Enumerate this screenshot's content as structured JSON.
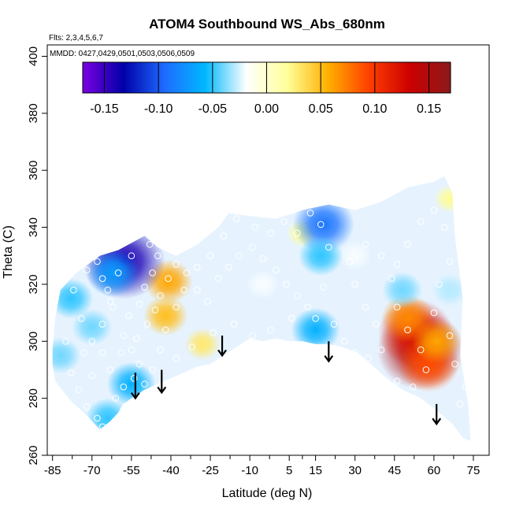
{
  "chart_data": {
    "type": "heatmap",
    "title": "ATOM4 Southbound WS_Abs_680nm",
    "annotations": [
      "Flts: 2,3,4,5,6,7",
      "MMDD: 0427,0429,0501,0503,0506,0509"
    ],
    "xlabel": "Latitude (deg N)",
    "ylabel": "Theta (C)",
    "xlim": [
      -87,
      81
    ],
    "ylim": [
      260,
      404
    ],
    "x_ticks": [
      -85,
      -70,
      -55,
      -40,
      -25,
      -10,
      5,
      15,
      30,
      45,
      60,
      75
    ],
    "y_ticks": [
      260,
      280,
      300,
      320,
      340,
      360,
      380,
      400
    ],
    "colorbar": {
      "range": [
        -0.17,
        0.17
      ],
      "ticks": [
        -0.15,
        -0.1,
        -0.05,
        0.0,
        0.05,
        0.1,
        0.15
      ],
      "tick_labels": [
        "-0.15",
        "-0.10",
        "-0.05",
        "0.00",
        "0.05",
        "0.10",
        "0.15"
      ],
      "colors": [
        "#7b00e0",
        "#0000a8",
        "#1e6bff",
        "#00b8ff",
        "#ffffff",
        "#ffff9a",
        "#ffb000",
        "#ff4000",
        "#cc0000",
        "#8b1a1a"
      ]
    },
    "field_outline": [
      [
        -85,
        292
      ],
      [
        -85,
        297
      ],
      [
        -84,
        308
      ],
      [
        -82,
        318
      ],
      [
        -76,
        324
      ],
      [
        -67,
        330
      ],
      [
        -60,
        332
      ],
      [
        -54,
        335
      ],
      [
        -50,
        337
      ],
      [
        -45,
        333
      ],
      [
        -38,
        330
      ],
      [
        -30,
        334
      ],
      [
        -22,
        340
      ],
      [
        -18,
        345
      ],
      [
        -10,
        344
      ],
      [
        0,
        343
      ],
      [
        10,
        346
      ],
      [
        20,
        348
      ],
      [
        30,
        346
      ],
      [
        40,
        349
      ],
      [
        50,
        354
      ],
      [
        60,
        356
      ],
      [
        64,
        358
      ],
      [
        67,
        352
      ],
      [
        68,
        337
      ],
      [
        71,
        315
      ],
      [
        70,
        295
      ],
      [
        73,
        278
      ],
      [
        74,
        265
      ],
      [
        71,
        266
      ],
      [
        67,
        271
      ],
      [
        62,
        275
      ],
      [
        55,
        280
      ],
      [
        48,
        283
      ],
      [
        42,
        287
      ],
      [
        36,
        292
      ],
      [
        31,
        296
      ],
      [
        25,
        298
      ],
      [
        20,
        299
      ],
      [
        15,
        299
      ],
      [
        10,
        300
      ],
      [
        5,
        300
      ],
      [
        0,
        301
      ],
      [
        -5,
        300
      ],
      [
        -10,
        301
      ],
      [
        -15,
        298
      ],
      [
        -20,
        295
      ],
      [
        -25,
        292
      ],
      [
        -30,
        291
      ],
      [
        -35,
        289
      ],
      [
        -40,
        287
      ],
      [
        -45,
        285
      ],
      [
        -50,
        283
      ],
      [
        -55,
        280
      ],
      [
        -58,
        278
      ],
      [
        -60,
        275
      ],
      [
        -63,
        272
      ],
      [
        -67,
        269
      ],
      [
        -72,
        274
      ],
      [
        -78,
        279
      ],
      [
        -84,
        286
      ]
    ],
    "anomalies": [
      {
        "x": 55,
        "y": 297,
        "value": 0.15
      },
      {
        "x": 53,
        "y": 303,
        "value": 0.12
      },
      {
        "x": 58,
        "y": 292,
        "value": 0.09
      },
      {
        "x": 50,
        "y": 308,
        "value": 0.07
      },
      {
        "x": 61,
        "y": 300,
        "value": 0.06
      },
      {
        "x": -41,
        "y": 321,
        "value": 0.06
      },
      {
        "x": -42,
        "y": 309,
        "value": 0.05
      },
      {
        "x": -28,
        "y": 299,
        "value": 0.03
      },
      {
        "x": 10,
        "y": 338,
        "value": 0.02
      },
      {
        "x": 66,
        "y": 350,
        "value": 0.02
      },
      {
        "x": -58,
        "y": 328,
        "value": -0.14
      },
      {
        "x": -62,
        "y": 324,
        "value": -0.07
      },
      {
        "x": -78,
        "y": 315,
        "value": -0.05
      },
      {
        "x": -70,
        "y": 305,
        "value": -0.04
      },
      {
        "x": -82,
        "y": 295,
        "value": -0.04
      },
      {
        "x": -55,
        "y": 285,
        "value": -0.06
      },
      {
        "x": -64,
        "y": 273,
        "value": -0.05
      },
      {
        "x": 18,
        "y": 341,
        "value": -0.09
      },
      {
        "x": 17,
        "y": 330,
        "value": -0.05
      },
      {
        "x": 15,
        "y": 304,
        "value": -0.06
      },
      {
        "x": 48,
        "y": 318,
        "value": -0.04
      },
      {
        "x": 66,
        "y": 318,
        "value": -0.03
      },
      {
        "x": -5,
        "y": 320,
        "value": -0.02
      },
      {
        "x": 30,
        "y": 330,
        "value": -0.02
      }
    ],
    "sample_points": [
      [
        -77,
        318
      ],
      [
        -72,
        325
      ],
      [
        -68,
        328
      ],
      [
        -66,
        322
      ],
      [
        -64,
        318
      ],
      [
        -62,
        312
      ],
      [
        -66,
        306
      ],
      [
        -70,
        300
      ],
      [
        -73,
        296
      ],
      [
        -78,
        289
      ],
      [
        -75,
        283
      ],
      [
        -72,
        277
      ],
      [
        -68,
        273
      ],
      [
        -66,
        270
      ],
      [
        -61,
        280
      ],
      [
        -58,
        284
      ],
      [
        -54,
        287
      ],
      [
        -52,
        292
      ],
      [
        -55,
        297
      ],
      [
        -58,
        302
      ],
      [
        -56,
        309
      ],
      [
        -52,
        313
      ],
      [
        -50,
        319
      ],
      [
        -47,
        324
      ],
      [
        -45,
        330
      ],
      [
        -48,
        334
      ],
      [
        -55,
        330
      ],
      [
        -60,
        324
      ],
      [
        -63,
        314
      ],
      [
        -59,
        296
      ],
      [
        -53,
        301
      ],
      [
        -49,
        306
      ],
      [
        -46,
        311
      ],
      [
        -44,
        316
      ],
      [
        -41,
        322
      ],
      [
        -38,
        327
      ],
      [
        -34,
        324
      ],
      [
        -30,
        318
      ],
      [
        -26,
        314
      ],
      [
        -22,
        322
      ],
      [
        -18,
        326
      ],
      [
        -14,
        330
      ],
      [
        -9,
        333
      ],
      [
        -5,
        329
      ],
      [
        0,
        325
      ],
      [
        4,
        320
      ],
      [
        8,
        316
      ],
      [
        12,
        312
      ],
      [
        15,
        308
      ],
      [
        18,
        319
      ],
      [
        20,
        333
      ],
      [
        17,
        341
      ],
      [
        13,
        345
      ],
      [
        8,
        338
      ],
      [
        3,
        342
      ],
      [
        -2,
        338
      ],
      [
        -8,
        340
      ],
      [
        -15,
        343
      ],
      [
        -20,
        337
      ],
      [
        -25,
        330
      ],
      [
        -30,
        326
      ],
      [
        -35,
        318
      ],
      [
        -38,
        312
      ],
      [
        -42,
        304
      ],
      [
        -44,
        297
      ],
      [
        -47,
        290
      ],
      [
        -50,
        285
      ],
      [
        -38,
        294
      ],
      [
        -32,
        298
      ],
      [
        -24,
        303
      ],
      [
        -16,
        306
      ],
      [
        -9,
        302
      ],
      [
        -2,
        304
      ],
      [
        6,
        308
      ],
      [
        22,
        306
      ],
      [
        26,
        300
      ],
      [
        30,
        296
      ],
      [
        35,
        294
      ],
      [
        40,
        297
      ],
      [
        38,
        306
      ],
      [
        34,
        312
      ],
      [
        30,
        320
      ],
      [
        28,
        328
      ],
      [
        34,
        334
      ],
      [
        40,
        330
      ],
      [
        44,
        322
      ],
      [
        46,
        312
      ],
      [
        50,
        304
      ],
      [
        55,
        297
      ],
      [
        57,
        290
      ],
      [
        52,
        284
      ],
      [
        46,
        286
      ],
      [
        60,
        310
      ],
      [
        62,
        320
      ],
      [
        66,
        328
      ],
      [
        64,
        340
      ],
      [
        60,
        346
      ],
      [
        55,
        342
      ],
      [
        50,
        334
      ],
      [
        46,
        327
      ],
      [
        70,
        278
      ],
      [
        72,
        284
      ],
      [
        68,
        292
      ],
      [
        66,
        302
      ],
      [
        -70,
        288
      ],
      [
        -74,
        308
      ],
      [
        -80,
        300
      ],
      [
        -58,
        276
      ],
      [
        -63,
        290
      ],
      [
        -66,
        296
      ]
    ],
    "arrows": [
      {
        "x": -53.5,
        "y_top": 289,
        "y_tip": 280
      },
      {
        "x": -43.5,
        "y_top": 290,
        "y_tip": 282
      },
      {
        "x": -20.5,
        "y_top": 302,
        "y_tip": 295
      },
      {
        "x": 20,
        "y_top": 300,
        "y_tip": 293
      },
      {
        "x": 61,
        "y_top": 278,
        "y_tip": 271
      }
    ]
  }
}
